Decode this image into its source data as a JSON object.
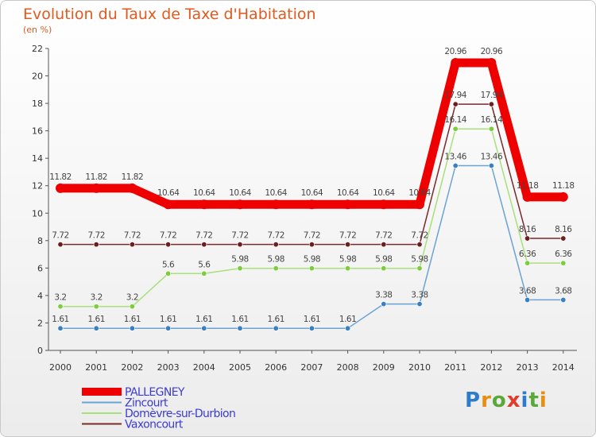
{
  "title": "Evolution du Taux de Taxe d'Habitation",
  "subtitle": "(en %)",
  "brand": {
    "letters": [
      "P",
      "r",
      "o",
      "x",
      "i",
      "t",
      "i"
    ],
    "colors": [
      "#2e7bc9",
      "#e88c12",
      "#5aa83a",
      "#e03c2b",
      "#2e7bc9",
      "#5aa83a",
      "#e88c12"
    ]
  },
  "chart_data": {
    "type": "line",
    "title": "Evolution du Taux de Taxe d'Habitation",
    "ylabel": "(en %)",
    "xlabel": "",
    "x": [
      "2000",
      "2001",
      "2002",
      "2003",
      "2004",
      "2005",
      "2006",
      "2007",
      "2008",
      "2009",
      "2010",
      "2011",
      "2012",
      "2013",
      "2014"
    ],
    "ylim": [
      0,
      22
    ],
    "yticks": [
      "0",
      "2",
      "4",
      "6",
      "8",
      "10",
      "12",
      "14",
      "16",
      "18",
      "20",
      "22"
    ],
    "grid": false,
    "legend": "bottom-left",
    "series": [
      {
        "name": "PALLEGNEY",
        "color": "#ee0000",
        "thick": true,
        "values": [
          11.82,
          11.82,
          11.82,
          10.64,
          10.64,
          10.64,
          10.64,
          10.64,
          10.64,
          10.64,
          10.64,
          20.96,
          20.96,
          11.18,
          11.18
        ],
        "labels": [
          "11.82",
          "11.82",
          "11.82",
          "10.64",
          "10.64",
          "10.64",
          "10.64",
          "10.64",
          "10.64",
          "10.64",
          "10.64",
          "20.96",
          "20.96",
          "11.18",
          "11.18"
        ]
      },
      {
        "name": "Zincourt",
        "color": "#6aa3d6",
        "marker": "#3a7fc0",
        "values": [
          1.61,
          1.61,
          1.61,
          1.61,
          1.61,
          1.61,
          1.61,
          1.61,
          1.61,
          3.38,
          3.38,
          13.46,
          13.46,
          3.68,
          3.68
        ],
        "labels": [
          "1.61",
          "1.61",
          "1.61",
          "1.61",
          "1.61",
          "1.61",
          "1.61",
          "1.61",
          "1.61",
          "3.38",
          "3.38",
          "13.46",
          "13.46",
          "3.68",
          "3.68"
        ]
      },
      {
        "name": "Domèvre-sur-Durbion",
        "color": "#a8e07a",
        "marker": "#7ccc3c",
        "values": [
          3.2,
          3.2,
          3.2,
          5.6,
          5.6,
          5.98,
          5.98,
          5.98,
          5.98,
          5.98,
          5.98,
          16.14,
          16.14,
          6.36,
          6.36
        ],
        "labels": [
          "3.2",
          "3.2",
          "3.2",
          "5.6",
          "5.6",
          "5.98",
          "5.98",
          "5.98",
          "5.98",
          "5.98",
          "5.98",
          "16.14",
          "16.14",
          "6.36",
          "6.36"
        ]
      },
      {
        "name": "Vaxoncourt",
        "color": "#7a2a2a",
        "marker": "#6b1e1e",
        "values": [
          7.72,
          7.72,
          7.72,
          7.72,
          7.72,
          7.72,
          7.72,
          7.72,
          7.72,
          7.72,
          7.72,
          17.94,
          17.94,
          8.16,
          8.16
        ],
        "labels": [
          "7.72",
          "7.72",
          "7.72",
          "7.72",
          "7.72",
          "7.72",
          "7.72",
          "7.72",
          "7.72",
          "7.72",
          "7.72",
          "17.94",
          "17.94",
          "8.16",
          "8.16"
        ]
      }
    ]
  }
}
